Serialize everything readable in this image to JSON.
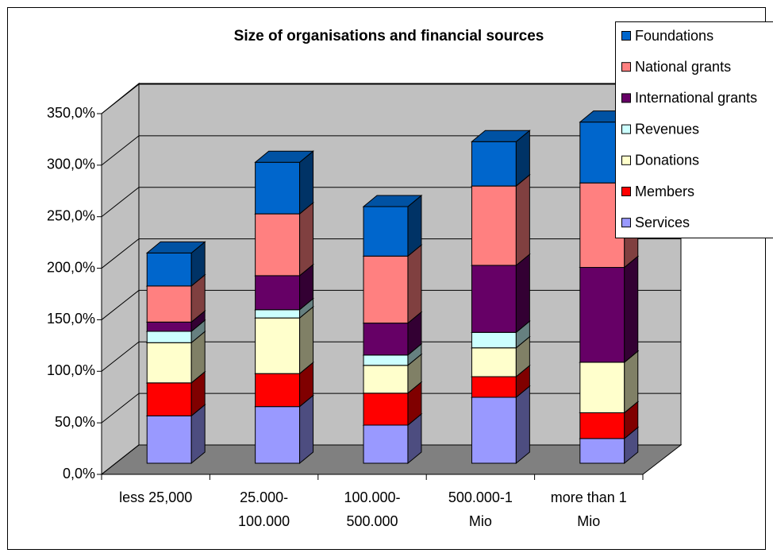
{
  "chart_data": {
    "type": "bar3d_stacked",
    "title": "Size of organisations and financial sources",
    "categories": [
      [
        "less 25,000"
      ],
      [
        "25.000-",
        "100.000"
      ],
      [
        "100.000-",
        "500.000"
      ],
      [
        "500.000-1",
        "Mio"
      ],
      [
        "more than 1",
        "Mio"
      ]
    ],
    "series": [
      {
        "name": "Services",
        "color": "#9999ff",
        "values": [
          46,
          55,
          37,
          64,
          24
        ]
      },
      {
        "name": "Members",
        "color": "#ff0000",
        "values": [
          32,
          32,
          31,
          20,
          25
        ]
      },
      {
        "name": "Donations",
        "color": "#ffffcc",
        "values": [
          39,
          54,
          27,
          28,
          49
        ]
      },
      {
        "name": "Revenues",
        "color": "#ccffff",
        "values": [
          11,
          8,
          10,
          15,
          0
        ]
      },
      {
        "name": "International grants",
        "color": "#660066",
        "values": [
          9,
          33,
          31,
          65,
          92
        ]
      },
      {
        "name": "National grants",
        "color": "#ff8080",
        "values": [
          35,
          60,
          65,
          77,
          82
        ]
      },
      {
        "name": "Foundations",
        "color": "#0066cc",
        "values": [
          32,
          50,
          48,
          43,
          59
        ]
      }
    ],
    "ylim": [
      0,
      350
    ],
    "yticks": [
      {
        "value": 0,
        "label": "0,0%"
      },
      {
        "value": 50,
        "label": "50,0%"
      },
      {
        "value": 100,
        "label": "100,0%"
      },
      {
        "value": 150,
        "label": "150,0%"
      },
      {
        "value": 200,
        "label": "200,0%"
      },
      {
        "value": 250,
        "label": "250,0%"
      },
      {
        "value": 300,
        "label": "300,0%"
      },
      {
        "value": 350,
        "label": "350,0%"
      }
    ],
    "grid": true
  }
}
